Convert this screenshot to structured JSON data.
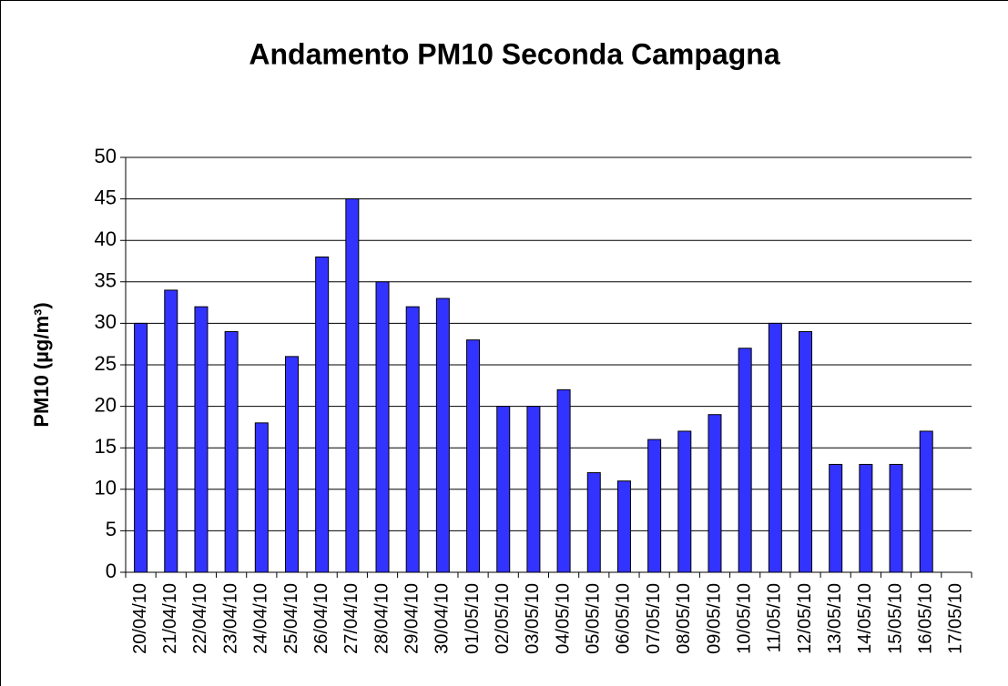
{
  "chart_data": {
    "type": "bar",
    "title": "Andamento PM10 Seconda Campagna",
    "y_label": "PM10 (µg/m³)",
    "categories": [
      "20/04/10",
      "21/04/10",
      "22/04/10",
      "23/04/10",
      "24/04/10",
      "25/04/10",
      "26/04/10",
      "27/04/10",
      "28/04/10",
      "29/04/10",
      "30/04/10",
      "01/05/10",
      "02/05/10",
      "03/05/10",
      "04/05/10",
      "05/05/10",
      "06/05/10",
      "07/05/10",
      "08/05/10",
      "09/05/10",
      "10/05/10",
      "11/05/10",
      "12/05/10",
      "13/05/10",
      "14/05/10",
      "15/05/10",
      "16/05/10",
      "17/05/10"
    ],
    "values": [
      30,
      34,
      32,
      29,
      18,
      26,
      38,
      45,
      35,
      32,
      33,
      28,
      20,
      20,
      22,
      12,
      11,
      16,
      17,
      19,
      27,
      30,
      29,
      13,
      13,
      13,
      17,
      null
    ],
    "color": "#3333ff",
    "ylim": [
      0,
      50
    ],
    "yticks": [
      0,
      5,
      10,
      15,
      20,
      25,
      30,
      35,
      40,
      45,
      50
    ],
    "grid": true
  }
}
